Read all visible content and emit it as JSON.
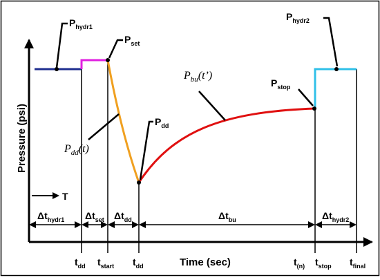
{
  "labels": {
    "y_axis": "Pressure (psi)",
    "x_axis": "Time (sec)",
    "T": "T",
    "p_hydr1": {
      "main": "P",
      "sub": "hydr1"
    },
    "p_set": {
      "main": "P",
      "sub": "set"
    },
    "p_dd": {
      "main": "P",
      "sub": "dd"
    },
    "p_stop": {
      "main": "P",
      "sub": "stop"
    },
    "p_hydr2": {
      "main": "P",
      "sub": "hydr2"
    },
    "p_bu_curve": {
      "main": "P",
      "sub": "bu",
      "arg": "(t’)"
    },
    "p_dd_curve": {
      "main": "P",
      "sub": "dd",
      "arg": "(t)"
    },
    "intervals": [
      {
        "main": "Δt",
        "sub": "hydr1"
      },
      {
        "main": "Δt",
        "sub": "set"
      },
      {
        "main": "Δt",
        "sub": "dd"
      },
      {
        "main": "Δt",
        "sub": "bu"
      },
      {
        "main": "Δt",
        "sub": "hydr2"
      }
    ],
    "time_ticks": [
      {
        "main": "t",
        "sub": "dd"
      },
      {
        "main": "t",
        "sub": "start"
      },
      {
        "main": "t",
        "sub": "dd"
      },
      {
        "main": "t",
        "sub": "(n)"
      },
      {
        "main": "t",
        "sub": "stop"
      },
      {
        "main": "t",
        "sub": "final"
      }
    ]
  },
  "colors": {
    "hydr1": "#1f2f8f",
    "set": "#e020e0",
    "drawdown": "#f0a020",
    "buildup": "#e01010",
    "hydr2": "#30c0e8"
  }
}
